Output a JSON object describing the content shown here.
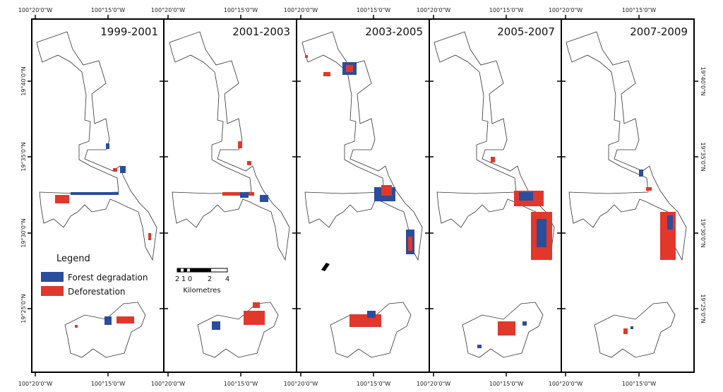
{
  "colors": {
    "forest_degradation": "#2a4d9c",
    "deforestation": "#e2372b",
    "outline": "#333333",
    "frame": "#000000"
  },
  "panels": [
    {
      "title": "1999-2001"
    },
    {
      "title": "2001-2003"
    },
    {
      "title": "2003-2005"
    },
    {
      "title": "2005-2007"
    },
    {
      "title": "2007-2009"
    }
  ],
  "axes": {
    "top_labels": [
      "100°20'0\"W",
      "100°15'0\"W",
      "100°20'0\"W",
      "100°15'0\"W",
      "100°20'0\"W",
      "100°15'0\"W",
      "100°20'0\"W",
      "100°15'0\"W",
      "100°20'0\"W",
      "100°15'0\"W"
    ],
    "bottom_labels": [
      "100°20'0\"W",
      "100°15'0\"W",
      "100°20'0\"W",
      "100°15'0\"W",
      "100°20'0\"W",
      "100°15'0\"W",
      "100°20'0\"W",
      "100°15'0\"W",
      "100°20'0\"W",
      "100°15'0\"W"
    ],
    "lat_labels": [
      "19°40'0\"N",
      "19°35'0\"N",
      "19°30'0\"N",
      "19°25'0\"N"
    ]
  },
  "legend": {
    "title": "Legend",
    "items": [
      {
        "label": "Forest degradation",
        "color": "#2a4d9c"
      },
      {
        "label": "Deforestation",
        "color": "#e2372b"
      }
    ]
  },
  "scale_bar": {
    "ticks": [
      "2",
      "1",
      "0",
      "2",
      "4"
    ],
    "unit": "Kilometres"
  }
}
